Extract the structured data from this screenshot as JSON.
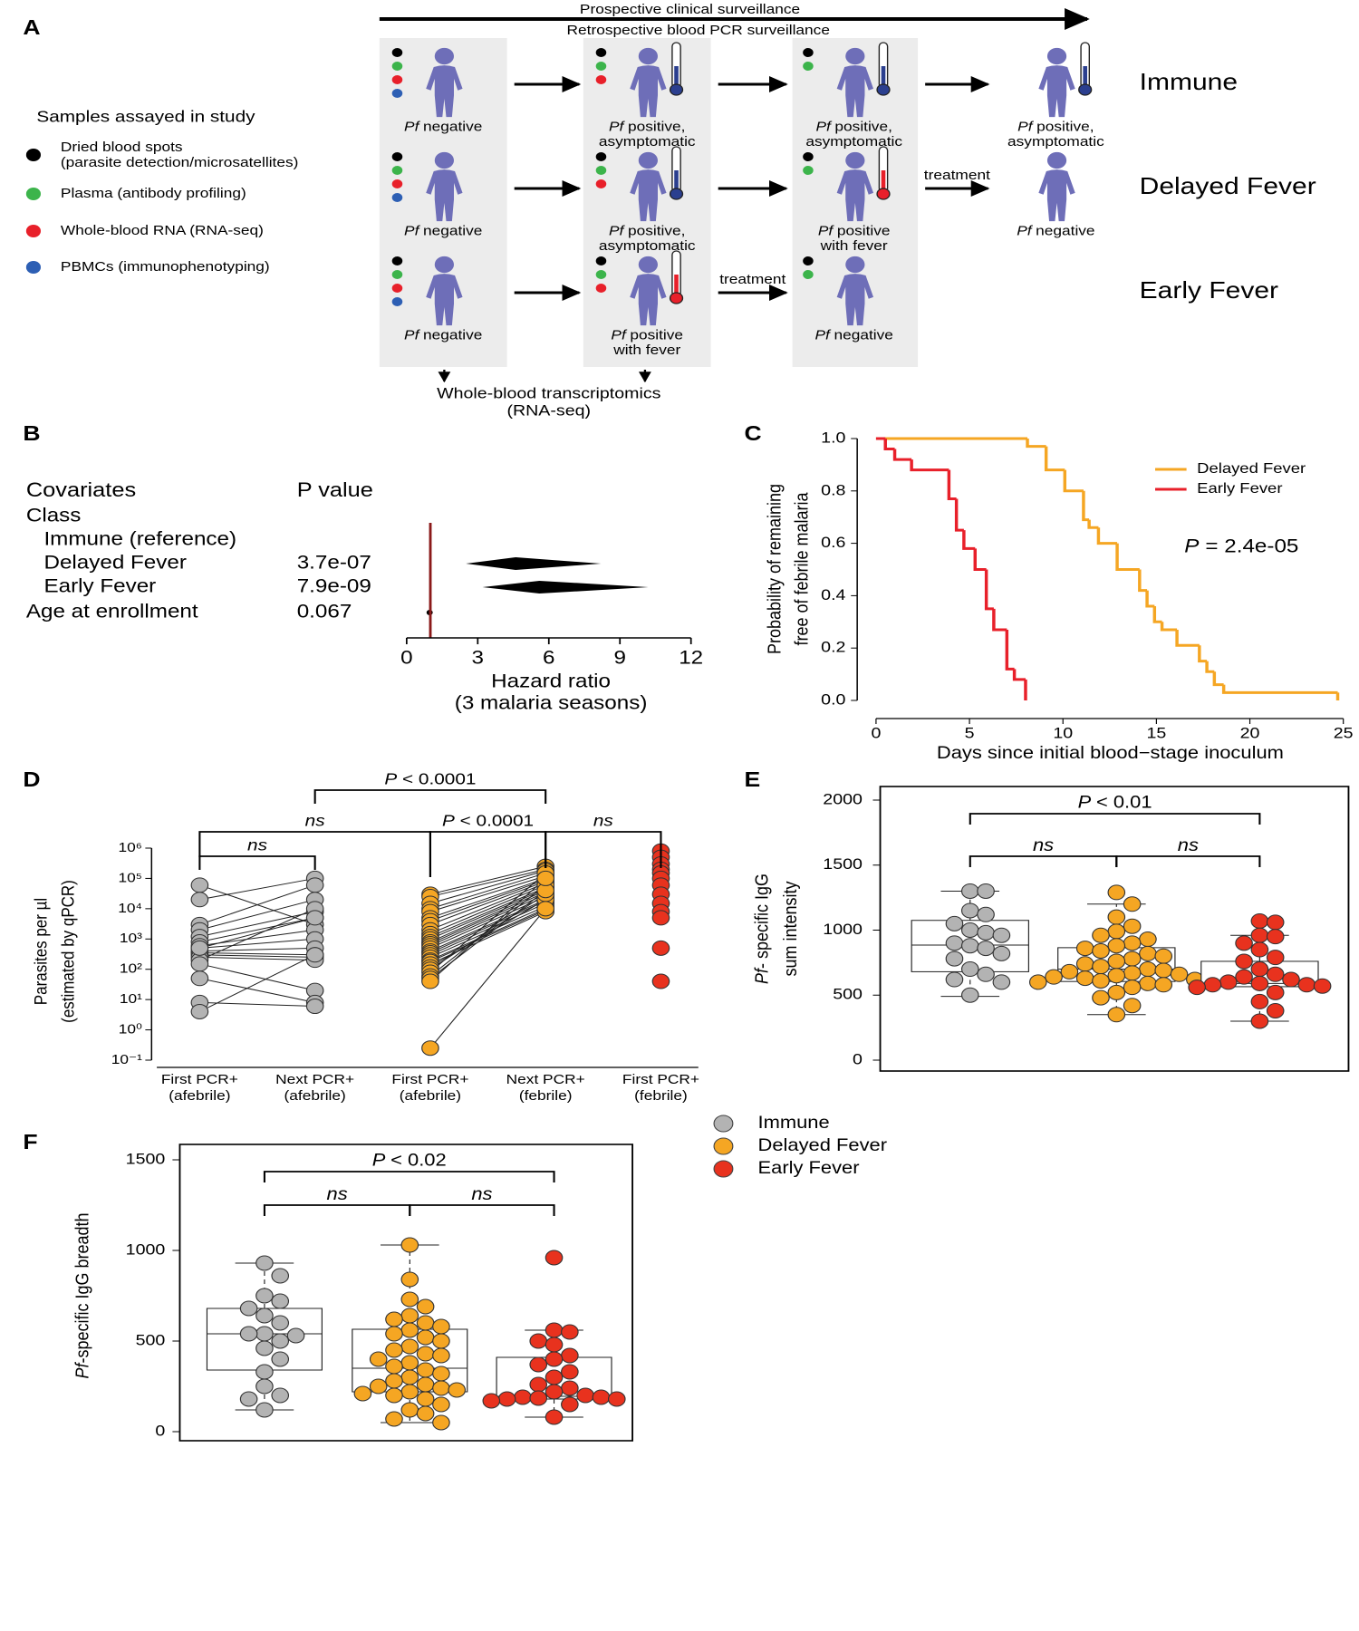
{
  "panel_labels": [
    "A",
    "B",
    "C",
    "D",
    "E",
    "F"
  ],
  "legend": [
    {
      "name": "Immune",
      "color": "#b3b3b3"
    },
    {
      "name": "Delayed Fever",
      "color": "#f5a623"
    },
    {
      "name": "Early Fever",
      "color": "#e8321e"
    }
  ],
  "diagram": {
    "timeline": [
      "Prospective clinical surveillance",
      "Retrospective blood PCR surveillance"
    ],
    "samples": {
      "title": "Samples assayed in study",
      "items": [
        {
          "lines": [
            "Dried blood spots",
            "(parasite detection/microsatellites)"
          ],
          "color": "#000000"
        },
        {
          "lines": [
            "Plasma (antibody profiling)"
          ],
          "color": "#3cb44b"
        },
        {
          "lines": [
            "Whole-blood RNA (RNA-seq)"
          ],
          "color": "#e8202a"
        },
        {
          "lines": [
            "PBMCs (immunophenotyping)"
          ],
          "color": "#2d5fb4"
        }
      ]
    },
    "rows": [
      {
        "label": "Immune",
        "color": "#000000",
        "stages": [
          {
            "samples": 4,
            "species": "Pf",
            "status": [
              "negative"
            ]
          },
          {
            "samples": 3,
            "thermometer": "#2b3f8f",
            "species": "Pf",
            "status": [
              "positive,",
              "asymptomatic"
            ]
          },
          {
            "samples": 2,
            "thermometer": "#2b3f8f",
            "species": "Pf",
            "status": [
              "positive,",
              "asymptomatic"
            ]
          },
          {
            "samples": 0,
            "thermometer": "#2b3f8f",
            "species": "Pf",
            "status": [
              "positive,",
              "asymptomatic"
            ]
          }
        ]
      },
      {
        "label": "Delayed Fever",
        "color": "#f5a623",
        "stages": [
          {
            "samples": 4,
            "species": "Pf",
            "status": [
              "negative"
            ]
          },
          {
            "samples": 3,
            "thermometer": "#2b3f8f",
            "species": "Pf",
            "status": [
              "positive,",
              "asymptomatic"
            ]
          },
          {
            "samples": 2,
            "thermometer": "#e8202a",
            "species": "Pf",
            "status": [
              "positive",
              "with fever"
            ]
          },
          {
            "samples": 0,
            "arrow_label": "treatment",
            "species": "Pf",
            "status": [
              "negative"
            ]
          }
        ]
      },
      {
        "label": "Early Fever",
        "color": "#e8202a",
        "stages": [
          {
            "samples": 4,
            "species": "Pf",
            "status": [
              "negative"
            ]
          },
          {
            "samples": 3,
            "thermometer": "#e8202a",
            "species": "Pf",
            "status": [
              "positive",
              "with fever"
            ]
          },
          {
            "samples": 2,
            "arrow_label": "treatment",
            "species": "Pf",
            "status": [
              "negative"
            ]
          }
        ]
      }
    ],
    "output": [
      "Whole-blood transcriptomics",
      "(RNA-seq)"
    ]
  },
  "chart_data": [
    {
      "type": "forest",
      "header": [
        "Covariates",
        "P value"
      ],
      "rows": [
        {
          "label": "Class"
        },
        {
          "label": "Immune (reference)"
        },
        {
          "label": "Delayed Fever",
          "p": "3.7e-07",
          "hr": 4.6,
          "lower": 2.5,
          "upper": 8.2
        },
        {
          "label": "Early Fever",
          "p": "7.9e-09",
          "hr": 5.6,
          "lower": 3.2,
          "upper": 10.2
        },
        {
          "label": "Age at enrollment",
          "p": "0.067",
          "hr": 0.97
        }
      ],
      "reference": 1,
      "reference_color": "#8b1a1a",
      "xlim": [
        0,
        12
      ],
      "xticks": [
        0,
        3,
        6,
        9,
        12
      ],
      "xlabel": [
        "Hazard ratio",
        "(3 malaria seasons)"
      ]
    },
    {
      "type": "step",
      "xlim": [
        0,
        25
      ],
      "xticks": [
        0,
        5,
        10,
        15,
        20,
        25
      ],
      "ylim": [
        0,
        1
      ],
      "yticks": [
        {
          "value": 0,
          "label": "0.0"
        },
        0.2,
        0.4,
        0.6,
        0.8,
        {
          "value": 1,
          "label": "1.0"
        }
      ],
      "xlabel": "Days since initial blood−stage inoculum",
      "ylabel": [
        "Probability of remaining",
        "free of febrile malaria"
      ],
      "annotation": {
        "symbol": "P",
        "text": "= 2.4e-05"
      },
      "series": [
        {
          "name": "Delayed Fever",
          "color": "#f5a623",
          "x": [
            0,
            8.1,
            9.1,
            10.1,
            11.1,
            11.4,
            11.9,
            12.9,
            14.1,
            14.5,
            14.9,
            15.3,
            16.1,
            17.3,
            17.7,
            18.1,
            18.6,
            24.7
          ],
          "values": [
            1,
            0.97,
            0.88,
            0.8,
            0.69,
            0.66,
            0.6,
            0.5,
            0.42,
            0.36,
            0.3,
            0.27,
            0.21,
            0.15,
            0.11,
            0.06,
            0.03,
            0
          ]
        },
        {
          "name": "Early Fever",
          "color": "#e8202a",
          "x": [
            0,
            0.5,
            1,
            1.9,
            3.9,
            4.3,
            4.7,
            5.3,
            5.9,
            6.3,
            7,
            7.4,
            8
          ],
          "values": [
            1,
            0.96,
            0.92,
            0.88,
            0.77,
            0.65,
            0.58,
            0.5,
            0.35,
            0.27,
            0.12,
            0.08,
            0
          ]
        }
      ]
    },
    {
      "type": "paired",
      "ylog": true,
      "ylim": [
        0.1,
        1000000
      ],
      "yticks": [
        {
          "value": 0.1,
          "label": "10⁻¹"
        },
        {
          "value": 1,
          "label": "10⁰"
        },
        {
          "value": 10,
          "label": "10¹"
        },
        {
          "value": 100,
          "label": "10²"
        },
        {
          "value": 1000,
          "label": "10³"
        },
        {
          "value": 10000,
          "label": "10⁴"
        },
        {
          "value": 100000,
          "label": "10⁵"
        },
        {
          "value": 1000000,
          "label": "10⁶"
        }
      ],
      "categories": [
        [
          "First PCR+",
          "(afebrile)"
        ],
        [
          "Next PCR+",
          "(afebrile)"
        ],
        [
          "First PCR+",
          "(afebrile)"
        ],
        [
          "Next PCR+",
          "(febrile)"
        ],
        [
          "First PCR+",
          "(febrile)"
        ]
      ],
      "ylabel": [
        "Parasites per µl",
        "(estimated by qPCR)"
      ],
      "series": [
        {
          "color": "#b3b3b3",
          "values": [
            [
              60000,
              20000,
              3000,
              2000,
              1200,
              800,
              600,
              500,
              400,
              350,
              300,
              250,
              200,
              150,
              50,
              8,
              4,
              500
            ],
            [
              3000,
              100000,
              60000,
              20000,
              8000,
              5000,
              2000,
              1000,
              500,
              300,
              250,
              200,
              10000,
              20,
              8,
              6,
              300,
              5000
            ]
          ]
        },
        {
          "color": "#f5a623",
          "values": [
            [
              30000,
              25000,
              15000,
              10000,
              8000,
              5000,
              4000,
              3000,
              2000,
              1500,
              1200,
              1000,
              800,
              700,
              600,
              500,
              400,
              350,
              300,
              250,
              200,
              180,
              150,
              120,
              100,
              80,
              60,
              50,
              40,
              0.25
            ],
            [
              250000,
              200000,
              180000,
              150000,
              120000,
              100000,
              90000,
              80000,
              70000,
              60000,
              50000,
              45000,
              40000,
              35000,
              30000,
              25000,
              20000,
              18000,
              15000,
              12000,
              10000,
              9000,
              8000,
              20000,
              30000,
              150000,
              60000,
              40000,
              100000,
              10000
            ]
          ]
        },
        {
          "color": "#e8321e",
          "values": [
            [
              800000,
              500000,
              300000,
              200000,
              150000,
              100000,
              60000,
              30000,
              15000,
              8000,
              5000,
              500,
              40
            ]
          ]
        }
      ],
      "brackets": [
        {
          "symbol": "P",
          "text": "< 0.0001",
          "from": 1,
          "to": 3
        },
        {
          "text": "ns",
          "from": 0,
          "to": 2
        },
        {
          "symbol": "P",
          "text": "< 0.0001",
          "from": 2,
          "to": 3
        },
        {
          "text": "ns",
          "from": 3,
          "to": 4
        },
        {
          "text": "ns",
          "from": 0,
          "to": 1
        }
      ]
    },
    {
      "type": "box",
      "ylim": [
        0,
        2000
      ],
      "yticks": [
        0,
        500,
        1000,
        1500,
        2000
      ],
      "ylabel": {
        "species": "Pf",
        "lines": [
          "- specific IgG",
          "sum intensity"
        ]
      },
      "series": [
        {
          "color": "#b3b3b3",
          "values": [
            1300,
            1300,
            1150,
            1120,
            1050,
            1000,
            980,
            960,
            900,
            880,
            860,
            820,
            780,
            700,
            660,
            620,
            600,
            500
          ],
          "box": {
            "min": 490,
            "q1": 680,
            "median": 885,
            "q3": 1075,
            "max": 1300
          }
        },
        {
          "color": "#f5a623",
          "values": [
            1290,
            1200,
            1100,
            1030,
            990,
            960,
            930,
            900,
            880,
            860,
            840,
            820,
            800,
            780,
            760,
            740,
            720,
            700,
            690,
            680,
            670,
            660,
            650,
            640,
            630,
            620,
            610,
            600,
            600,
            590,
            580,
            560,
            520,
            480,
            420,
            350
          ],
          "box": {
            "min": 350,
            "q1": 605,
            "median": 700,
            "q3": 865,
            "max": 1200
          }
        },
        {
          "color": "#e8321e",
          "values": [
            1070,
            1060,
            960,
            950,
            900,
            850,
            790,
            760,
            700,
            660,
            640,
            620,
            600,
            590,
            580,
            580,
            570,
            560,
            520,
            450,
            380,
            300
          ],
          "box": {
            "min": 300,
            "q1": 565,
            "median": 590,
            "q3": 760,
            "max": 960
          }
        }
      ],
      "brackets": [
        {
          "symbol": "P",
          "text": "< 0.01",
          "from": 0,
          "to": 2
        },
        {
          "text": "ns",
          "from": 0,
          "to": 1
        },
        {
          "text": "ns",
          "from": 1,
          "to": 2
        }
      ]
    },
    {
      "type": "box",
      "ylim": [
        0,
        1500
      ],
      "yticks": [
        0,
        500,
        1000,
        1500
      ],
      "ylabel": {
        "species": "Pf",
        "lines": [
          "-specific IgG breadth"
        ]
      },
      "series": [
        {
          "color": "#b3b3b3",
          "values": [
            930,
            860,
            750,
            720,
            680,
            640,
            600,
            540,
            540,
            530,
            500,
            460,
            400,
            330,
            250,
            200,
            180,
            120
          ],
          "box": {
            "min": 120,
            "q1": 340,
            "median": 540,
            "q3": 680,
            "max": 930
          }
        },
        {
          "color": "#f5a623",
          "values": [
            1030,
            840,
            730,
            690,
            640,
            620,
            600,
            580,
            560,
            540,
            520,
            500,
            470,
            450,
            430,
            420,
            400,
            380,
            360,
            340,
            320,
            300,
            280,
            260,
            250,
            240,
            230,
            220,
            210,
            200,
            180,
            150,
            120,
            100,
            70,
            50
          ],
          "box": {
            "min": 50,
            "q1": 220,
            "median": 350,
            "q3": 565,
            "max": 1030
          }
        },
        {
          "color": "#e8321e",
          "values": [
            960,
            560,
            550,
            500,
            480,
            420,
            400,
            370,
            330,
            300,
            260,
            240,
            220,
            200,
            190,
            190,
            185,
            180,
            180,
            170,
            150,
            80
          ],
          "box": {
            "min": 80,
            "q1": 180,
            "median": 195,
            "q3": 410,
            "max": 560
          }
        }
      ],
      "brackets": [
        {
          "symbol": "P",
          "text": "< 0.02",
          "from": 0,
          "to": 2
        },
        {
          "text": "ns",
          "from": 0,
          "to": 1
        },
        {
          "text": "ns",
          "from": 1,
          "to": 2
        }
      ]
    }
  ]
}
